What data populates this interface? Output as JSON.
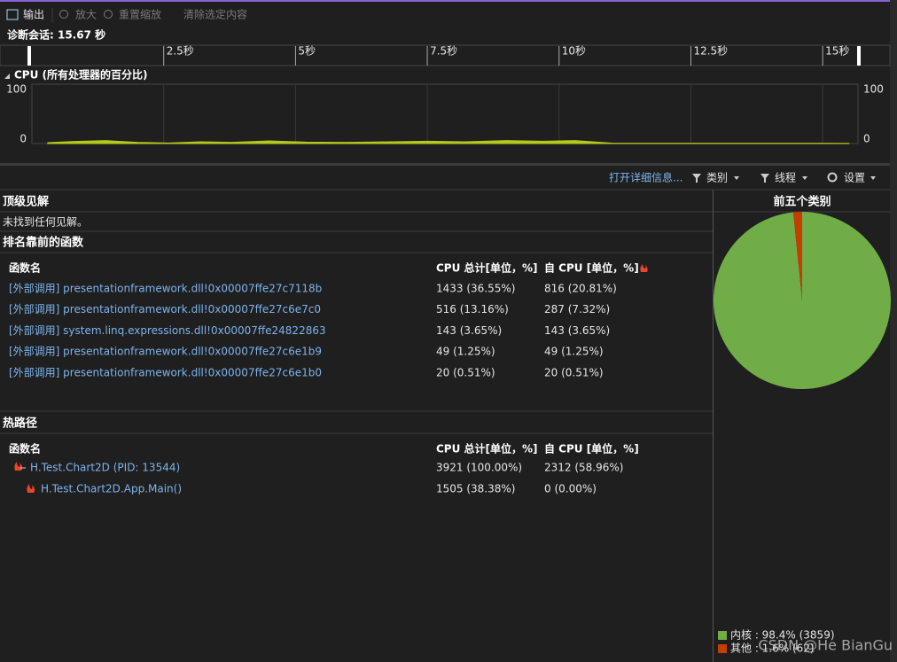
{
  "toolbar": {
    "output": "输出",
    "zoom_in": "放大",
    "reset_zoom": "重置缩放",
    "clear_selection": "清除选定内容"
  },
  "session": "诊断会话: 15.67 秒",
  "chart_data": [
    {
      "type": "area",
      "title": "CPU (所有处理器的百分比)",
      "x": [
        0.3,
        0.8,
        1.4,
        2.0,
        2.6,
        3.2,
        3.8,
        4.5,
        5.2,
        6.0,
        6.8,
        7.5,
        8.2,
        9.0,
        9.7,
        10.3,
        11.0,
        12.0,
        13.0,
        14.0,
        15.0,
        15.5
      ],
      "values": [
        1.5,
        3.5,
        5,
        2,
        1,
        3,
        2,
        4.5,
        2.5,
        2,
        3,
        4,
        3,
        5,
        4,
        5,
        0.8,
        0.5,
        0.5,
        0.5,
        0.5,
        0.3
      ],
      "color": "#b5c81d",
      "xlim": [
        0,
        15.67
      ],
      "xticks": [
        {
          "value": 2.5,
          "label": "2.5秒"
        },
        {
          "value": 5,
          "label": "5秒"
        },
        {
          "value": 7.5,
          "label": "7.5秒"
        },
        {
          "value": 10,
          "label": "10秒"
        },
        {
          "value": 12.5,
          "label": "12.5秒"
        },
        {
          "value": 15,
          "label": "15秒"
        }
      ],
      "ylim": [
        0,
        100
      ],
      "yticks": [
        0,
        100
      ],
      "grid": true
    },
    {
      "type": "pie",
      "title": "前五个类别",
      "values": [
        98.4,
        1.6
      ],
      "value_labels": [
        "内核 : 98.4% (3859)",
        "其他 : 1.6% (62)"
      ],
      "colors": [
        "#70ad47",
        "#c43e00"
      ]
    }
  ],
  "details_bar": {
    "open_details": "打开详细信息...",
    "category": "类别",
    "thread": "线程",
    "settings": "设置"
  },
  "insights": {
    "title": "顶级见解",
    "message": "未找到任何见解。"
  },
  "top_functions": {
    "title": "排名靠前的函数",
    "columns": [
      "函数名",
      "CPU 总计[单位，%]",
      "自 CPU [单位，%]"
    ],
    "rows": [
      [
        "[外部调用] presentationframework.dll!0x00007ffe27c7118b",
        "1433 (36.55%)",
        "816 (20.81%)"
      ],
      [
        "[外部调用] presentationframework.dll!0x00007ffe27c6e7c0",
        "516 (13.16%)",
        "287 (7.32%)"
      ],
      [
        "[外部调用] system.linq.expressions.dll!0x00007ffe24822863",
        "143 (3.65%)",
        "143 (3.65%)"
      ],
      [
        "[外部调用] presentationframework.dll!0x00007ffe27c6e1b9",
        "49 (1.25%)",
        "49 (1.25%)"
      ],
      [
        "[外部调用] presentationframework.dll!0x00007ffe27c6e1b0",
        "20 (0.51%)",
        "20 (0.51%)"
      ]
    ]
  },
  "hot_path": {
    "title": "热路径",
    "columns": [
      "函数名",
      "CPU 总计[单位，%]",
      "自 CPU [单位，%]"
    ],
    "rows": [
      [
        "H.Test.Chart2D (PID: 13544)",
        "3921 (100.00%)",
        "2312 (58.96%)"
      ],
      [
        "H.Test.Chart2D.App.Main()",
        "1505 (38.38%)",
        "0 (0.00%)"
      ]
    ]
  },
  "watermark": "CSDN @He BianGu"
}
